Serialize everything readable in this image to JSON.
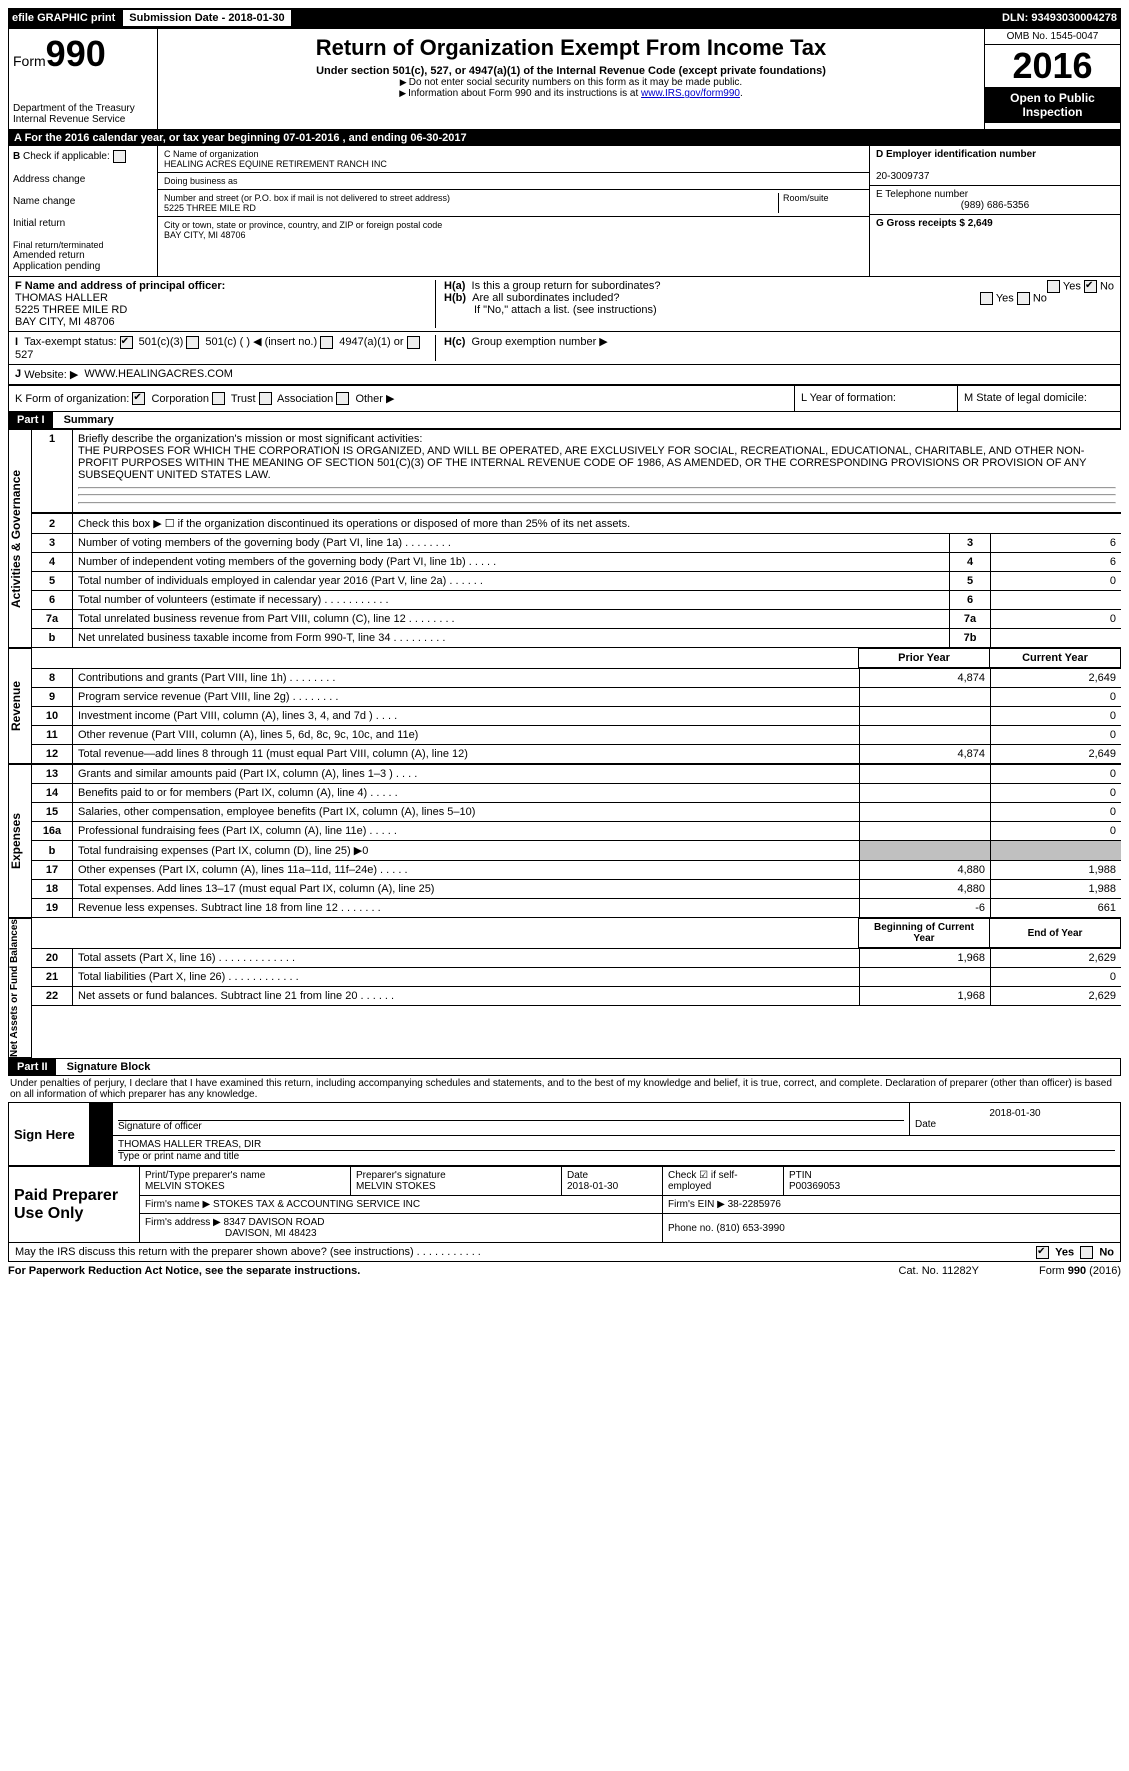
{
  "header": {
    "efile": "efile GRAPHIC print",
    "submission_label": "Submission Date - 2018-01-30",
    "dln": "DLN: 93493030004278"
  },
  "title_block": {
    "form_label": "Form",
    "form_num": "990",
    "dept": "Department of the Treasury",
    "irs": "Internal Revenue Service",
    "title": "Return of Organization Exempt From Income Tax",
    "subtitle": "Under section 501(c), 527, or 4947(a)(1) of the Internal Revenue Code (except private foundations)",
    "note1": "Do not enter social security numbers on this form as it may be made public.",
    "note2": "Information about Form 990 and its instructions is at ",
    "link": "www.IRS.gov/form990",
    "omb": "OMB No. 1545-0047",
    "year": "2016",
    "open": "Open to Public Inspection"
  },
  "row_a": "A   For the 2016 calendar year, or tax year beginning 07-01-2016       , and ending 06-30-2017",
  "section_b": {
    "check_label": "Check if applicable:",
    "checks": [
      "Address change",
      "Name change",
      "Initial return",
      "Final return/terminated",
      "Amended return",
      "Application pending"
    ],
    "c_label": "C Name of organization",
    "org": "HEALING ACRES EQUINE RETIREMENT RANCH INC",
    "dba": "Doing business as",
    "street_label": "Number and street (or P.O. box if mail is not delivered to street address)",
    "room_label": "Room/suite",
    "street": "5225 THREE MILE RD",
    "city_label": "City or town, state or province, country, and ZIP or foreign postal code",
    "city": "BAY CITY, MI  48706",
    "d_label": "D Employer identification number",
    "ein": "20-3009737",
    "e_label": "E Telephone number",
    "phone": "(989) 686-5356",
    "g_label": "G Gross receipts $ 2,649"
  },
  "officer": {
    "label": "F  Name and address of principal officer:",
    "name": "THOMAS HALLER",
    "addr1": "5225 THREE MILE RD",
    "addr2": "BAY CITY, MI  48706"
  },
  "h": {
    "ha_label": "H(a)",
    "ha_text": "Is this a group return for subordinates?",
    "hb_label": "H(b)",
    "hb_text": "Are all subordinates included?",
    "hb_note": "If \"No,\" attach a list. (see instructions)",
    "hc_label": "H(c)",
    "hc_text": "Group exemption number ▶",
    "yes": "Yes",
    "no": "No"
  },
  "row_i": {
    "label": "I",
    "text": "Tax-exempt status:",
    "opts": [
      "501(c)(3)",
      "501(c) (  ) ◀ (insert no.)",
      "4947(a)(1) or",
      "527"
    ]
  },
  "row_j": {
    "label": "J",
    "text": "Website: ▶",
    "url": "WWW.HEALINGACRES.COM"
  },
  "row_k": {
    "label": "K Form of organization:",
    "opts": [
      "Corporation",
      "Trust",
      "Association",
      "Other ▶"
    ]
  },
  "row_lm": {
    "l": "L Year of formation:",
    "m": "M State of legal domicile:"
  },
  "part1_label": "Part I",
  "part1_title": "Summary",
  "line1": {
    "num": "1",
    "text": "Briefly describe the organization's mission or most significant activities:",
    "desc": "THE PURPOSES FOR WHICH THE CORPORATION IS ORGANIZED, AND WILL BE OPERATED, ARE EXCLUSIVELY FOR SOCIAL, RECREATIONAL, EDUCATIONAL, CHARITABLE, AND OTHER NON-PROFIT PURPOSES WITHIN THE MEANING OF SECTION 501(C)(3) OF THE INTERNAL REVENUE CODE OF 1986, AS AMENDED, OR THE CORRESPONDING PROVISIONS OR PROVISION OF ANY SUBSEQUENT UNITED STATES LAW."
  },
  "activities_label": "Activities & Governance",
  "revenue_label": "Revenue",
  "expenses_label": "Expenses",
  "netassets_label": "Net Assets or Fund Balances",
  "rows": [
    {
      "n": "2",
      "t": "Check this box ▶ ☐ if the organization discontinued its operations or disposed of more than 25% of its net assets."
    },
    {
      "n": "3",
      "t": "Number of voting members of the governing body (Part VI, line 1a)   .    .    .    .    .    .    .    .",
      "box": "3",
      "v": "6"
    },
    {
      "n": "4",
      "t": "Number of independent voting members of the governing body (Part VI, line 1b)   .    .    .    .    .",
      "box": "4",
      "v": "6"
    },
    {
      "n": "5",
      "t": "Total number of individuals employed in calendar year 2016 (Part V, line 2a)   .    .    .    .    .    .",
      "box": "5",
      "v": "0"
    },
    {
      "n": "6",
      "t": "Total number of volunteers (estimate if necessary)   .    .    .    .    .    .    .    .    .    .    .",
      "box": "6",
      "v": ""
    },
    {
      "n": "7a",
      "t": "Total unrelated business revenue from Part VIII, column (C), line 12   .    .    .    .    .    .    .    .",
      "box": "7a",
      "v": "0"
    },
    {
      "n": "b",
      "t": "Net unrelated business taxable income from Form 990-T, line 34   .    .    .    .    .    .    .    .    .",
      "box": "7b",
      "v": ""
    }
  ],
  "yearheaders": {
    "prior": "Prior Year",
    "current": "Current Year"
  },
  "revenue_rows": [
    {
      "n": "8",
      "t": "Contributions and grants (Part VIII, line 1h)   .    .    .    .    .    .    .    .",
      "p": "4,874",
      "c": "2,649"
    },
    {
      "n": "9",
      "t": "Program service revenue (Part VIII, line 2g)   .    .    .    .    .    .    .    .",
      "p": "",
      "c": "0"
    },
    {
      "n": "10",
      "t": "Investment income (Part VIII, column (A), lines 3, 4, and 7d )   .    .    .    .",
      "p": "",
      "c": "0"
    },
    {
      "n": "11",
      "t": "Other revenue (Part VIII, column (A), lines 5, 6d, 8c, 9c, 10c, and 11e)",
      "p": "",
      "c": "0"
    },
    {
      "n": "12",
      "t": "Total revenue—add lines 8 through 11 (must equal Part VIII, column (A), line 12)",
      "p": "4,874",
      "c": "2,649"
    }
  ],
  "expense_rows": [
    {
      "n": "13",
      "t": "Grants and similar amounts paid (Part IX, column (A), lines 1–3 )   .    .    .    .",
      "p": "",
      "c": "0"
    },
    {
      "n": "14",
      "t": "Benefits paid to or for members (Part IX, column (A), line 4)   .    .    .    .    .",
      "p": "",
      "c": "0"
    },
    {
      "n": "15",
      "t": "Salaries, other compensation, employee benefits (Part IX, column (A), lines 5–10)",
      "p": "",
      "c": "0"
    },
    {
      "n": "16a",
      "t": "Professional fundraising fees (Part IX, column (A), line 11e)   .    .    .    .    .",
      "p": "",
      "c": "0"
    },
    {
      "n": "b",
      "t": "Total fundraising expenses (Part IX, column (D), line 25) ▶0",
      "p": "GREY",
      "c": "GREY"
    },
    {
      "n": "17",
      "t": "Other expenses (Part IX, column (A), lines 11a–11d, 11f–24e)   .    .    .    .    .",
      "p": "4,880",
      "c": "1,988"
    },
    {
      "n": "18",
      "t": "Total expenses. Add lines 13–17 (must equal Part IX, column (A), line 25)",
      "p": "4,880",
      "c": "1,988"
    },
    {
      "n": "19",
      "t": "Revenue less expenses. Subtract line 18 from line 12   .    .    .    .    .    .    .",
      "p": "-6",
      "c": "661"
    }
  ],
  "balheaders": {
    "begin": "Beginning of Current Year",
    "end": "End of Year"
  },
  "balance_rows": [
    {
      "n": "20",
      "t": "Total assets (Part X, line 16)   .    .    .    .    .    .    .    .    .    .    .    .    .",
      "p": "1,968",
      "c": "2,629"
    },
    {
      "n": "21",
      "t": "Total liabilities (Part X, line 26)   .    .    .    .    .    .    .    .    .    .    .    .",
      "p": "",
      "c": "0"
    },
    {
      "n": "22",
      "t": "Net assets or fund balances. Subtract line 21 from line 20   .    .    .    .    .    .",
      "p": "1,968",
      "c": "2,629"
    }
  ],
  "part2_label": "Part II",
  "part2_title": "Signature Block",
  "perjury": "Under penalties of perjury, I declare that I have examined this return, including accompanying schedules and statements, and to the best of my knowledge and belief, it is true, correct, and complete. Declaration of preparer (other than officer) is based on all information of which preparer has any knowledge.",
  "sign": {
    "sign_here": "Sign Here",
    "sig_officer": "Signature of officer",
    "date": "2018-01-30",
    "date_lbl": "Date",
    "name": "THOMAS HALLER  TREAS, DIR",
    "name_lbl": "Type or print name and title"
  },
  "paid": {
    "label": "Paid Preparer Use Only",
    "prep_name_lbl": "Print/Type preparer's name",
    "prep_name": "MELVIN STOKES",
    "prep_sig_lbl": "Preparer's signature",
    "prep_sig": "MELVIN STOKES",
    "prep_date_lbl": "Date",
    "prep_date": "2018-01-30",
    "check_lbl": "Check ☑ if self-employed",
    "ptin_lbl": "PTIN",
    "ptin": "P00369053",
    "firm_name_lbl": "Firm's name    ▶",
    "firm_name": "STOKES TAX & ACCOUNTING SERVICE INC",
    "firm_ein_lbl": "Firm's EIN ▶",
    "firm_ein": "38-2285976",
    "firm_addr_lbl": "Firm's address ▶",
    "firm_addr": "8347 DAVISON ROAD",
    "firm_city": "DAVISON, MI  48423",
    "phone_lbl": "Phone no.",
    "phone": "(810) 653-3990"
  },
  "discuss": "May the IRS discuss this return with the preparer shown above? (see instructions)   .    .    .    .    .    .    .    .    .    .    .",
  "footer": {
    "pra": "For Paperwork Reduction Act Notice, see the separate instructions.",
    "cat": "Cat. No. 11282Y",
    "form": "Form 990 (2016)"
  }
}
